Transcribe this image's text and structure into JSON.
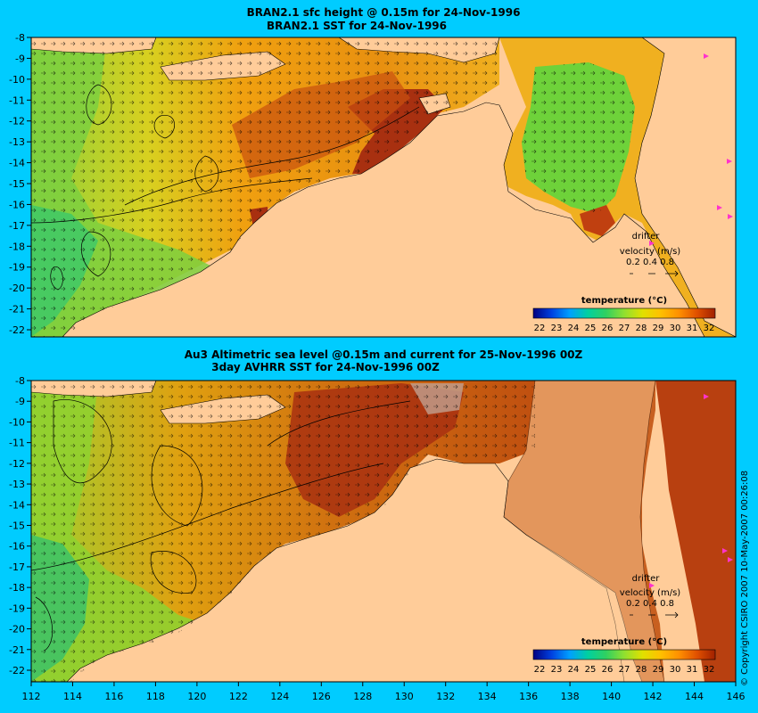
{
  "panels": [
    {
      "title_line1": "BRAN2.1 sfc height @ 0.15m for 24-Nov-1996",
      "title_line2": "BRAN2.1  SST for 24-Nov-1996",
      "lat_ticks": [
        "-8",
        "-9",
        "-10",
        "-11",
        "-12",
        "-13",
        "-14",
        "-15",
        "-16",
        "-17",
        "-18",
        "-19",
        "-20",
        "-21",
        "-22"
      ],
      "legend": {
        "title": "temperature (°C)",
        "labels": [
          "22",
          "23",
          "24",
          "25",
          "26",
          "27",
          "28",
          "29",
          "30",
          "31",
          "32"
        ]
      },
      "drifter": {
        "label": "drifter",
        "velocity_label": "velocity (m/s)",
        "scale_values": "0.2 0.4 0.8"
      }
    },
    {
      "title_line1": "Au3 Altimetric sea level  @0.15m and current for 25-Nov-1996 00Z",
      "title_line2": "3day AVHRR SST for 24-Nov-1996 00Z",
      "lat_ticks": [
        "-8",
        "-9",
        "-10",
        "-11",
        "-12",
        "-13",
        "-14",
        "-15",
        "-16",
        "-17",
        "-18",
        "-19",
        "-20",
        "-21",
        "-22"
      ],
      "legend": {
        "title": "temperature (°C)",
        "labels": [
          "22",
          "23",
          "24",
          "25",
          "26",
          "27",
          "28",
          "29",
          "30",
          "31",
          "32"
        ]
      },
      "drifter": {
        "label": "drifter",
        "velocity_label": "velocity (m/s)",
        "scale_values": "0.2 0.4 0.8"
      }
    }
  ],
  "lon_ticks": [
    "112",
    "114",
    "116",
    "118",
    "120",
    "122",
    "124",
    "126",
    "128",
    "130",
    "132",
    "134",
    "136",
    "138",
    "140",
    "142",
    "144",
    "146"
  ],
  "copyright": "© Copyright CSIRO 2007   10-May-2007 00:26:08",
  "colors": {
    "background": "#00ccff",
    "land": "#ffcc99",
    "drifter": "#ff33cc",
    "colorbar": [
      "#000080",
      "#0040e0",
      "#00a0ff",
      "#00d0a0",
      "#30d060",
      "#90e030",
      "#e0e000",
      "#ffc000",
      "#ff9000",
      "#e05000",
      "#a02000"
    ]
  }
}
